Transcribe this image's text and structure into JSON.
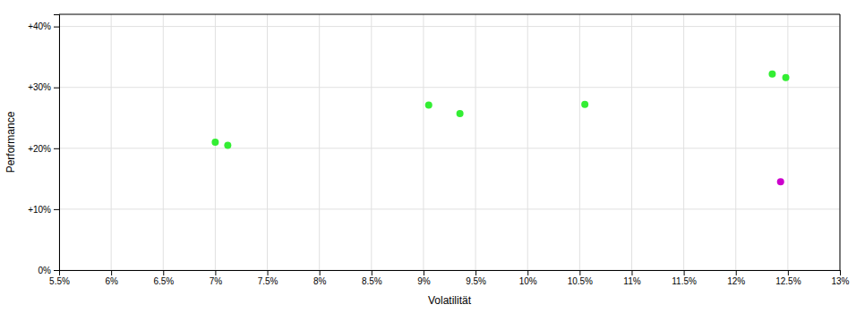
{
  "chart_data": {
    "type": "scatter",
    "xlabel": "Volatilität",
    "ylabel": "Performance",
    "xlim": [
      0.055,
      0.13
    ],
    "ylim": [
      0.0,
      0.42
    ],
    "xticks": [
      {
        "value": 0.055,
        "label": "5.5%"
      },
      {
        "value": 0.06,
        "label": "6%"
      },
      {
        "value": 0.065,
        "label": "6.5%"
      },
      {
        "value": 0.07,
        "label": "7%"
      },
      {
        "value": 0.075,
        "label": "7.5%"
      },
      {
        "value": 0.08,
        "label": "8%"
      },
      {
        "value": 0.085,
        "label": "8.5%"
      },
      {
        "value": 0.09,
        "label": "9%"
      },
      {
        "value": 0.095,
        "label": "9.5%"
      },
      {
        "value": 0.1,
        "label": "10%"
      },
      {
        "value": 0.105,
        "label": "10.5%"
      },
      {
        "value": 0.11,
        "label": "11%"
      },
      {
        "value": 0.115,
        "label": "11.5%"
      },
      {
        "value": 0.12,
        "label": "12%"
      },
      {
        "value": 0.125,
        "label": "12.5%"
      },
      {
        "value": 0.13,
        "label": "13%"
      }
    ],
    "yticks": [
      {
        "value": 0.0,
        "label": "0%"
      },
      {
        "value": 0.1,
        "label": "+10%"
      },
      {
        "value": 0.2,
        "label": "+20%"
      },
      {
        "value": 0.3,
        "label": "+30%"
      },
      {
        "value": 0.4,
        "label": "+40%"
      }
    ],
    "grid": true,
    "series": [
      {
        "color": "#33ee33",
        "x": [
          0.07,
          0.0712,
          0.0905,
          0.0935,
          0.1055,
          0.1235,
          0.1248
        ],
        "values": [
          0.21,
          0.205,
          0.271,
          0.257,
          0.272,
          0.322,
          0.316
        ]
      },
      {
        "color": "#cc00cc",
        "x": [
          0.1243
        ],
        "values": [
          0.145
        ]
      }
    ]
  }
}
